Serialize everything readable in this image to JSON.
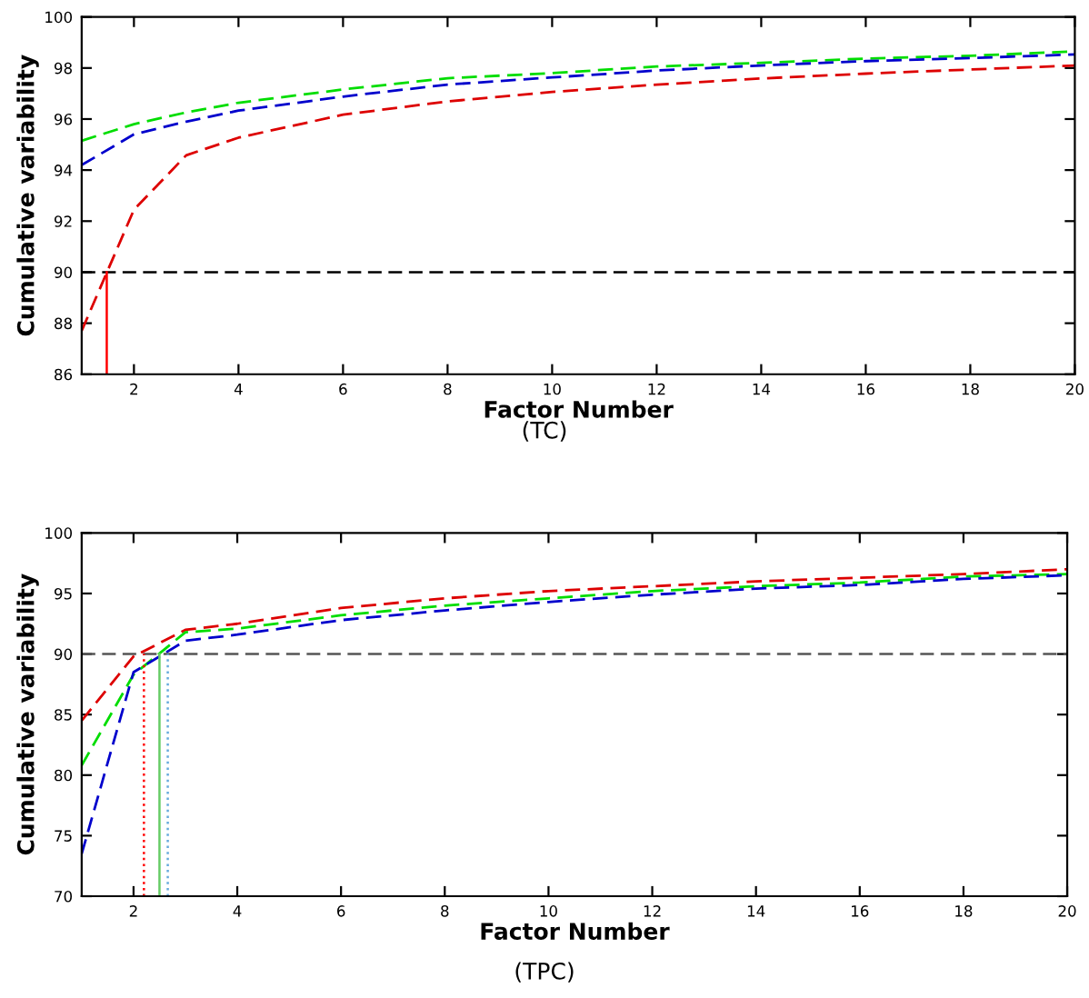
{
  "chart_data": [
    {
      "type": "line",
      "xlabel": "Factor Number",
      "ylabel": "Cumulative variability",
      "annotations": [
        "(TC)"
      ],
      "x": [
        1,
        2,
        3,
        4,
        6,
        8,
        10,
        12,
        14,
        16,
        18,
        20
      ],
      "xlim": [
        1,
        20
      ],
      "xticks": [
        2,
        4,
        6,
        8,
        10,
        12,
        14,
        16,
        18,
        20
      ],
      "ylim": [
        86,
        100
      ],
      "yticks": [
        86,
        88,
        90,
        92,
        94,
        96,
        98,
        100
      ],
      "line_style": "dashed",
      "grid": false,
      "legend": false,
      "series": [
        {
          "color": "#00dd00",
          "values": [
            95.15,
            95.8,
            96.26,
            96.64,
            97.16,
            97.6,
            97.8,
            98.06,
            98.2,
            98.37,
            98.48,
            98.65
          ]
        },
        {
          "color": "#0000cc",
          "values": [
            94.2,
            95.4,
            95.9,
            96.33,
            96.88,
            97.35,
            97.63,
            97.9,
            98.1,
            98.27,
            98.39,
            98.53
          ]
        },
        {
          "color": "#dd0000",
          "values": [
            87.7,
            92.45,
            94.58,
            95.27,
            96.17,
            96.69,
            97.06,
            97.35,
            97.59,
            97.78,
            97.94,
            98.1
          ]
        }
      ],
      "ref_lines": [
        {
          "axis": "y",
          "value": 90,
          "color": "#000000",
          "line_style": "dashed"
        },
        {
          "axis": "x",
          "value": 1.48,
          "color": "#ff0000",
          "line_style": "solid"
        }
      ]
    },
    {
      "type": "line",
      "xlabel": "Factor Number",
      "ylabel": "Cumulative variability",
      "annotations": [
        "(TPC)"
      ],
      "x": [
        1,
        2,
        3,
        4,
        6,
        8,
        10,
        12,
        14,
        16,
        18,
        20
      ],
      "xlim": [
        1,
        20
      ],
      "xticks": [
        2,
        4,
        6,
        8,
        10,
        12,
        14,
        16,
        18,
        20
      ],
      "ylim": [
        70,
        100
      ],
      "yticks": [
        70,
        75,
        80,
        85,
        90,
        95,
        100
      ],
      "line_style": "dashed",
      "grid": false,
      "legend": false,
      "series": [
        {
          "color": "#dd0000",
          "values": [
            84.5,
            89.8,
            92.0,
            92.5,
            93.8,
            94.6,
            95.2,
            95.6,
            96.0,
            96.3,
            96.6,
            97.0
          ]
        },
        {
          "color": "#00dd00",
          "values": [
            80.8,
            88.3,
            91.8,
            92.1,
            93.2,
            94.0,
            94.6,
            95.2,
            95.6,
            95.9,
            96.4,
            96.6
          ]
        },
        {
          "color": "#0000cc",
          "values": [
            73.5,
            88.5,
            91.1,
            91.6,
            92.8,
            93.6,
            94.3,
            94.9,
            95.4,
            95.7,
            96.2,
            96.5
          ]
        }
      ],
      "ref_lines": [
        {
          "axis": "y",
          "value": 90,
          "color": "#555555",
          "line_style": "dashed"
        },
        {
          "axis": "x",
          "value": 2.2,
          "color": "#ff0000",
          "line_style": "dotted"
        },
        {
          "axis": "x",
          "value": 2.5,
          "color": "#66cc66",
          "line_style": "solid"
        },
        {
          "axis": "x",
          "value": 2.66,
          "color": "#66aadd",
          "line_style": "dotted"
        }
      ]
    }
  ]
}
